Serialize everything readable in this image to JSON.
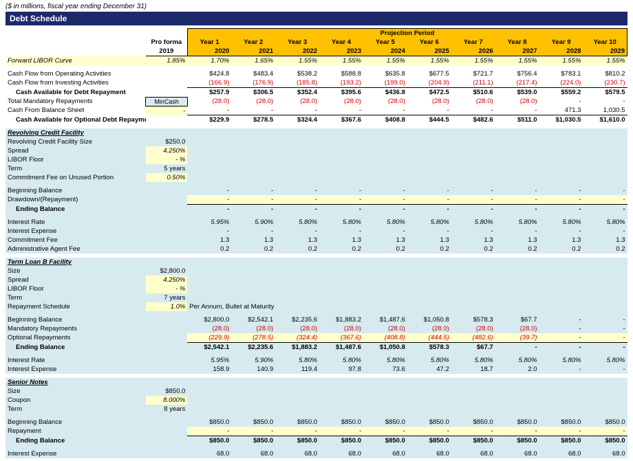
{
  "subtitle": "($ in millions, fiscal year ending December 31)",
  "title": "Debt Schedule",
  "colHeaders": {
    "proforma": "Pro forma",
    "proformaYear": "2019",
    "projection": "Projection Period",
    "years": [
      "Year 1",
      "Year 2",
      "Year 3",
      "Year 4",
      "Year 5",
      "Year 6",
      "Year 7",
      "Year 8",
      "Year 9",
      "Year 10"
    ],
    "yearNums": [
      "2020",
      "2021",
      "2022",
      "2023",
      "2024",
      "2025",
      "2026",
      "2027",
      "2028",
      "2029"
    ]
  },
  "mincashLabel": "MinCash",
  "top": [
    {
      "label": "Forward LIBOR Curve",
      "pf": "1.85%",
      "vals": [
        "1.70%",
        "1.65%",
        "1.55%",
        "1.55%",
        "1.55%",
        "1.55%",
        "1.55%",
        "1.55%",
        "1.55%",
        "1.55%"
      ],
      "hlRow": "yellow",
      "italic": true
    },
    {
      "spacer": true
    },
    {
      "label": "Cash Flow from Operating Activities",
      "pf": "",
      "vals": [
        "$424.8",
        "$483.4",
        "$538.2",
        "$588.8",
        "$635.8",
        "$677.5",
        "$721.7",
        "$756.4",
        "$783.1",
        "$810.2"
      ]
    },
    {
      "label": "Cash Flow from Investing Activities",
      "pf": "",
      "vals": [
        "(166.9)",
        "(176.9)",
        "(185.8)",
        "(193.2)",
        "(199.0)",
        "(204.9)",
        "(211.1)",
        "(217.4)",
        "(224.0)",
        "(230.7)"
      ],
      "neg": true
    },
    {
      "label": "Cash Available for Debt Repayment",
      "pf": "",
      "vals": [
        "$257.9",
        "$306.5",
        "$352.4",
        "$395.6",
        "$436.8",
        "$472.5",
        "$510.6",
        "$539.0",
        "$559.2",
        "$579.5"
      ],
      "bold": true,
      "bt": true,
      "indent": true
    },
    {
      "label": "Total Mandatory Repayments",
      "pf": "",
      "vals": [
        "(28.0)",
        "(28.0)",
        "(28.0)",
        "(28.0)",
        "(28.0)",
        "(28.0)",
        "(28.0)",
        "(28.0)",
        "-",
        "-"
      ],
      "neg": true,
      "mincash": true
    },
    {
      "label": "Cash From Balance Sheet",
      "pf": "-",
      "vals": [
        "-",
        "-",
        "-",
        "-",
        "-",
        "-",
        "-",
        "-",
        "471.3",
        "1,030.5"
      ],
      "pfHl": "yellow"
    },
    {
      "label": "Cash Available for Optional Debt Repayment",
      "pf": "",
      "vals": [
        "$229.9",
        "$278.5",
        "$324.4",
        "$367.6",
        "$408.8",
        "$444.5",
        "$482.6",
        "$511.0",
        "$1,030.5",
        "$1,610.0"
      ],
      "bold": true,
      "bt": true,
      "indent": true
    }
  ],
  "rcf": {
    "title": "Revolving Credit Facility",
    "params": [
      {
        "label": "Revolving Credit Facility Size",
        "val": "$250.0"
      },
      {
        "label": "Spread",
        "val": "4.250%",
        "hl": "yellow",
        "italic": true
      },
      {
        "label": "LIBOR Floor",
        "val": "- %",
        "hl": "yellow",
        "italic": true
      },
      {
        "label": "Term",
        "val": "5 years"
      },
      {
        "label": "Commitment Fee on Unused Portion",
        "val": "0.50%",
        "hl": "yellow",
        "italic": true
      }
    ],
    "rows": [
      {
        "label": "Beginning Balance",
        "vals": [
          "-",
          "-",
          "-",
          "-",
          "-",
          "-",
          "-",
          "-",
          "-",
          "-"
        ]
      },
      {
        "label": "Drawdown/(Repayment)",
        "vals": [
          "-",
          "-",
          "-",
          "-",
          "-",
          "-",
          "-",
          "-",
          "-",
          "-"
        ],
        "hl": "yellow",
        "italic": true
      },
      {
        "label": "Ending Balance",
        "vals": [
          "-",
          "-",
          "-",
          "-",
          "-",
          "-",
          "-",
          "-",
          "-",
          "-"
        ],
        "bold": true,
        "bt": true,
        "indent": true
      },
      {
        "spacer": true
      },
      {
        "label": "Interest Rate",
        "vals": [
          "5.95%",
          "5.90%",
          "5.80%",
          "5.80%",
          "5.80%",
          "5.80%",
          "5.80%",
          "5.80%",
          "5.80%",
          "5.80%"
        ],
        "italic": true
      },
      {
        "label": "Interest Expense",
        "vals": [
          "-",
          "-",
          "-",
          "-",
          "-",
          "-",
          "-",
          "-",
          "-",
          "-"
        ]
      },
      {
        "label": "Commitment Fee",
        "vals": [
          "1.3",
          "1.3",
          "1.3",
          "1.3",
          "1.3",
          "1.3",
          "1.3",
          "1.3",
          "1.3",
          "1.3"
        ]
      },
      {
        "label": "Administrative Agent Fee",
        "vals": [
          "0.2",
          "0.2",
          "0.2",
          "0.2",
          "0.2",
          "0.2",
          "0.2",
          "0.2",
          "0.2",
          "0.2"
        ]
      }
    ]
  },
  "tlb": {
    "title": "Term Loan B Facility",
    "params": [
      {
        "label": "Size",
        "val": "$2,800.0"
      },
      {
        "label": "Spread",
        "val": "4.250%",
        "hl": "yellow",
        "italic": true
      },
      {
        "label": "LIBOR Floor",
        "val": "- %",
        "hl": "yellow",
        "italic": true
      },
      {
        "label": "Term",
        "val": "7 years"
      },
      {
        "label": "Repayment Schedule",
        "val": "1.0%",
        "hl": "yellow",
        "italic": true,
        "note": "Per Annum, Bullet at Maturity"
      }
    ],
    "rows": [
      {
        "label": "Beginning Balance",
        "vals": [
          "$2,800.0",
          "$2,542.1",
          "$2,235.6",
          "$1,883.2",
          "$1,487.6",
          "$1,050.8",
          "$578.3",
          "$67.7",
          "-",
          "-"
        ]
      },
      {
        "label": "Mandatory Repayments",
        "vals": [
          "(28.0)",
          "(28.0)",
          "(28.0)",
          "(28.0)",
          "(28.0)",
          "(28.0)",
          "(28.0)",
          "(28.0)",
          "-",
          "-"
        ],
        "neg": true
      },
      {
        "label": "Optional Repayments",
        "vals": [
          "(229.9)",
          "(278.5)",
          "(324.4)",
          "(367.6)",
          "(408.8)",
          "(444.5)",
          "(482.6)",
          "(39.7)",
          "-",
          "-"
        ],
        "neg": true,
        "hl": "yellow",
        "italic": true
      },
      {
        "label": "Ending Balance",
        "vals": [
          "$2,542.1",
          "$2,235.6",
          "$1,883.2",
          "$1,487.6",
          "$1,050.8",
          "$578.3",
          "$67.7",
          "-",
          "-",
          "-"
        ],
        "bold": true,
        "bt": true,
        "indent": true
      },
      {
        "spacer": true
      },
      {
        "label": "Interest Rate",
        "vals": [
          "5.95%",
          "5.90%",
          "5.80%",
          "5.80%",
          "5.80%",
          "5.80%",
          "5.80%",
          "5.80%",
          "5.80%",
          "5.80%"
        ],
        "italic": true
      },
      {
        "label": "Interest Expense",
        "vals": [
          "158.9",
          "140.9",
          "119.4",
          "97.8",
          "73.6",
          "47.2",
          "18.7",
          "2.0",
          "-",
          "-"
        ]
      }
    ]
  },
  "sn": {
    "title": "Senior Notes",
    "params": [
      {
        "label": "Size",
        "val": "$850.0"
      },
      {
        "label": "Coupon",
        "val": "8.000%",
        "hl": "yellow",
        "italic": true
      },
      {
        "label": "Term",
        "val": "8 years"
      }
    ],
    "rows": [
      {
        "label": "Beginning Balance",
        "vals": [
          "$850.0",
          "$850.0",
          "$850.0",
          "$850.0",
          "$850.0",
          "$850.0",
          "$850.0",
          "$850.0",
          "$850.0",
          "$850.0"
        ]
      },
      {
        "label": "Repayment",
        "vals": [
          "-",
          "-",
          "-",
          "-",
          "-",
          "-",
          "-",
          "-",
          "-",
          "-"
        ],
        "hl": "yellow",
        "italic": true
      },
      {
        "label": "Ending Balance",
        "vals": [
          "$850.0",
          "$850.0",
          "$850.0",
          "$850.0",
          "$850.0",
          "$850.0",
          "$850.0",
          "$850.0",
          "$850.0",
          "$850.0"
        ],
        "bold": true,
        "bt": true,
        "indent": true
      },
      {
        "spacer": true
      },
      {
        "label": "Interest Expense",
        "vals": [
          "68.0",
          "68.0",
          "68.0",
          "68.0",
          "68.0",
          "68.0",
          "68.0",
          "68.0",
          "68.0",
          "68.0"
        ]
      }
    ]
  }
}
